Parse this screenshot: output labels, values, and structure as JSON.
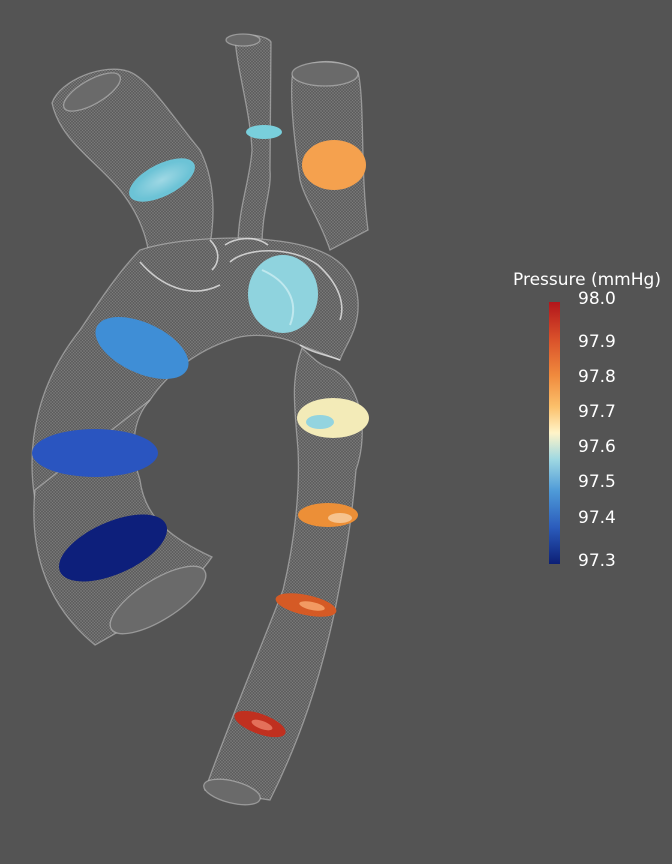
{
  "colors": {
    "background": "#545454",
    "vessel_mesh": "#9a9a9a",
    "scale_high": "#b2151b",
    "scale_mid": "#fff4c8",
    "scale_low": "#0c1f76"
  },
  "legend": {
    "title": "Pressure (mmHg)",
    "ticks": [
      "98.0",
      "97.9",
      "97.8",
      "97.7",
      "97.6",
      "97.5",
      "97.4",
      "97.3"
    ],
    "min": 97.3,
    "max": 98.0
  },
  "cross_sections": [
    {
      "id": "brachiocephalic-upper",
      "pressure": 97.53
    },
    {
      "id": "left-carotid-upper",
      "pressure": 97.54
    },
    {
      "id": "left-subclavian-upper",
      "pressure": 97.77
    },
    {
      "id": "arch-center",
      "pressure": 97.54
    },
    {
      "id": "ascending-upper",
      "pressure": 97.44
    },
    {
      "id": "ascending-mid",
      "pressure": 97.38
    },
    {
      "id": "ascending-lower",
      "pressure": 97.31
    },
    {
      "id": "descending-1",
      "pressure": 97.64
    },
    {
      "id": "descending-2",
      "pressure": 97.82
    },
    {
      "id": "descending-3",
      "pressure": 97.88
    },
    {
      "id": "descending-4",
      "pressure": 97.95
    }
  ]
}
